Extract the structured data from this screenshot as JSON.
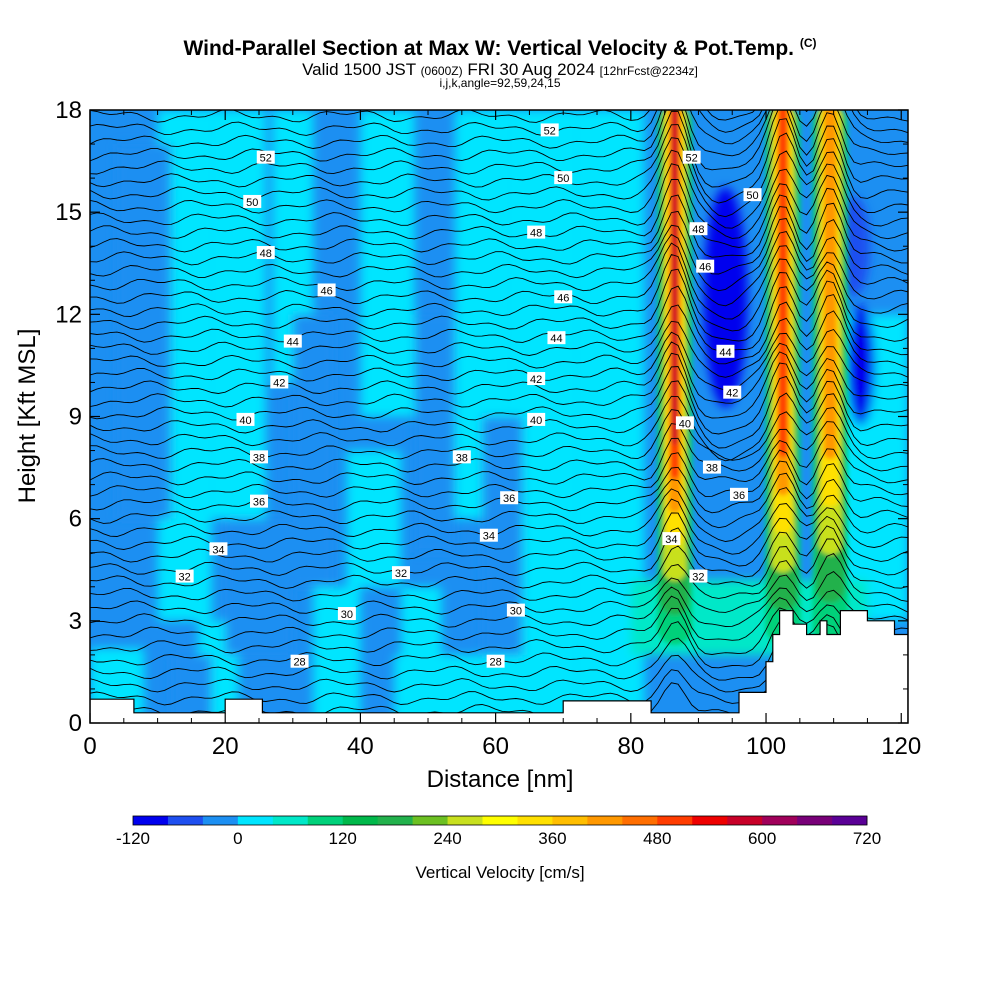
{
  "chart_data": {
    "type": "heatmap",
    "title": "Wind-Parallel Section at Max W: Vertical Velocity & Pot.Temp.",
    "title_mark": "(C)",
    "subtitle_prefix": "Valid 1500 JST",
    "subtitle_zulu": "(0600Z)",
    "subtitle_date": "FRI 30 Aug 2024",
    "subtitle_fcst": "[12hrFcst@2234z]",
    "subtitle2": "i,j,k,angle=92,59,24,15",
    "xlabel": "Distance [nm]",
    "ylabel": "Height [Kft MSL]",
    "xlim": [
      0,
      121
    ],
    "ylim": [
      0,
      18
    ],
    "x_ticks": [
      0,
      20,
      40,
      60,
      80,
      100,
      120
    ],
    "y_ticks": [
      0,
      3,
      6,
      9,
      12,
      15,
      18
    ],
    "colorbar": {
      "label": "Vertical Velocity [cm/s]",
      "tick_values": [
        -120,
        0,
        120,
        240,
        360,
        480,
        600,
        720
      ],
      "tick_labels": [
        "-120",
        "0",
        "120",
        "240",
        "360",
        "480",
        "600",
        "720"
      ],
      "colors": [
        "#0000ee",
        "#1e4ff0",
        "#1c8ff2",
        "#00e5ff",
        "#00e8c8",
        "#00d17a",
        "#00b84a",
        "#22b14c",
        "#6cc022",
        "#c8e01e",
        "#ffff00",
        "#ffe000",
        "#ffbe00",
        "#ff9800",
        "#ff6e00",
        "#ff3c00",
        "#ee0000",
        "#c80028",
        "#a0005a",
        "#780078",
        "#5a0096"
      ]
    },
    "updrafts": [
      {
        "x_center": 86.5,
        "peak_cm_s": 620
      },
      {
        "x_center": 102.5,
        "peak_cm_s": 560
      },
      {
        "x_center": 109.5,
        "peak_cm_s": 470
      }
    ],
    "theta_contour_labels": [
      {
        "x": 26,
        "y": 16.6,
        "text": "52"
      },
      {
        "x": 24,
        "y": 15.3,
        "text": "50"
      },
      {
        "x": 26,
        "y": 13.8,
        "text": "48"
      },
      {
        "x": 35,
        "y": 12.7,
        "text": "46"
      },
      {
        "x": 30,
        "y": 11.2,
        "text": "44"
      },
      {
        "x": 28,
        "y": 10.0,
        "text": "42"
      },
      {
        "x": 23,
        "y": 8.9,
        "text": "40"
      },
      {
        "x": 25,
        "y": 7.8,
        "text": "38"
      },
      {
        "x": 25,
        "y": 6.5,
        "text": "36"
      },
      {
        "x": 19,
        "y": 5.1,
        "text": "34"
      },
      {
        "x": 14,
        "y": 4.3,
        "text": "32"
      },
      {
        "x": 38,
        "y": 3.2,
        "text": "30"
      },
      {
        "x": 31,
        "y": 1.8,
        "text": "28"
      },
      {
        "x": 68,
        "y": 17.4,
        "text": "52"
      },
      {
        "x": 70,
        "y": 16.0,
        "text": "50"
      },
      {
        "x": 66,
        "y": 14.4,
        "text": "48"
      },
      {
        "x": 70,
        "y": 12.5,
        "text": "46"
      },
      {
        "x": 69,
        "y": 11.3,
        "text": "44"
      },
      {
        "x": 66,
        "y": 10.1,
        "text": "42"
      },
      {
        "x": 66,
        "y": 8.9,
        "text": "40"
      },
      {
        "x": 55,
        "y": 7.8,
        "text": "38"
      },
      {
        "x": 62,
        "y": 6.6,
        "text": "36"
      },
      {
        "x": 59,
        "y": 5.5,
        "text": "34"
      },
      {
        "x": 46,
        "y": 4.4,
        "text": "32"
      },
      {
        "x": 63,
        "y": 3.3,
        "text": "30"
      },
      {
        "x": 60,
        "y": 1.8,
        "text": "28"
      },
      {
        "x": 89,
        "y": 16.6,
        "text": "52"
      },
      {
        "x": 98,
        "y": 15.5,
        "text": "50"
      },
      {
        "x": 90,
        "y": 14.5,
        "text": "48"
      },
      {
        "x": 91,
        "y": 13.4,
        "text": "46"
      },
      {
        "x": 94,
        "y": 10.9,
        "text": "44"
      },
      {
        "x": 95,
        "y": 9.7,
        "text": "42"
      },
      {
        "x": 88,
        "y": 8.8,
        "text": "40"
      },
      {
        "x": 92,
        "y": 7.5,
        "text": "38"
      },
      {
        "x": 96,
        "y": 6.7,
        "text": "36"
      },
      {
        "x": 86,
        "y": 5.4,
        "text": "34"
      },
      {
        "x": 90,
        "y": 4.3,
        "text": "32"
      }
    ],
    "terrain": [
      [
        0,
        0.7
      ],
      [
        6.5,
        0.7
      ],
      [
        6.5,
        0.3
      ],
      [
        20,
        0.3
      ],
      [
        20,
        0.7
      ],
      [
        25.5,
        0.7
      ],
      [
        25.5,
        0.3
      ],
      [
        70,
        0.3
      ],
      [
        70,
        0.65
      ],
      [
        83,
        0.65
      ],
      [
        83,
        0.3
      ],
      [
        96,
        0.3
      ],
      [
        96,
        0.9
      ],
      [
        100,
        0.9
      ],
      [
        100,
        1.8
      ],
      [
        101,
        1.8
      ],
      [
        101,
        2.6
      ],
      [
        102,
        2.6
      ],
      [
        102,
        3.3
      ],
      [
        104,
        3.3
      ],
      [
        104,
        2.9
      ],
      [
        106,
        2.9
      ],
      [
        106,
        2.6
      ],
      [
        108,
        2.6
      ],
      [
        108,
        3.0
      ],
      [
        109,
        3.0
      ],
      [
        109,
        2.6
      ],
      [
        111,
        2.6
      ],
      [
        111,
        3.3
      ],
      [
        115,
        3.3
      ],
      [
        115,
        3.0
      ],
      [
        119,
        3.0
      ],
      [
        119,
        2.6
      ],
      [
        121,
        2.6
      ],
      [
        121,
        0.3
      ]
    ]
  }
}
